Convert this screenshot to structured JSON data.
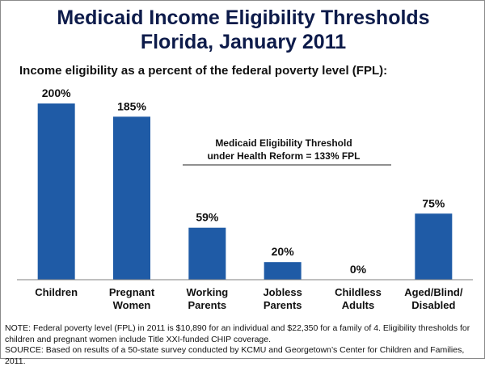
{
  "header": {
    "title_line1": "Medicaid Income Eligibility Thresholds",
    "title_line2": "Florida, January 2011",
    "subtitle": "Income eligibility as a percent of the federal poverty level (FPL):"
  },
  "chart_data": {
    "type": "bar",
    "title": "Medicaid Income Eligibility Thresholds Florida, January 2011",
    "ylabel": "Income eligibility as a percent of the federal poverty level (FPL)",
    "xlabel": "",
    "ylim": [
      0,
      200
    ],
    "categories": [
      [
        "Children"
      ],
      [
        "Pregnant",
        "Women"
      ],
      [
        "Working",
        "Parents"
      ],
      [
        "Jobless",
        "Parents"
      ],
      [
        "Childless",
        "Adults"
      ],
      [
        "Aged/Blind/",
        "Disabled"
      ]
    ],
    "values": [
      200,
      185,
      59,
      20,
      0,
      75
    ],
    "value_labels": [
      "200%",
      "185%",
      "59%",
      "20%",
      "0%",
      "75%"
    ],
    "annotation": {
      "line1": "Medicaid Eligibility Threshold",
      "line2": "under Health Reform  = 133% FPL"
    },
    "bar_color": "#1f5ba6"
  },
  "notes": {
    "note": "NOTE: Federal poverty level (FPL) in 2011 is $10,890 for an individual and  $22,350 for a family of 4. Eligibility thresholds for children and pregnant women include Title XXI-funded CHIP coverage.",
    "source": "SOURCE: Based on results of a 50-state survey conducted by KCMU and Georgetown’s Center for Children and Families, 2011."
  }
}
